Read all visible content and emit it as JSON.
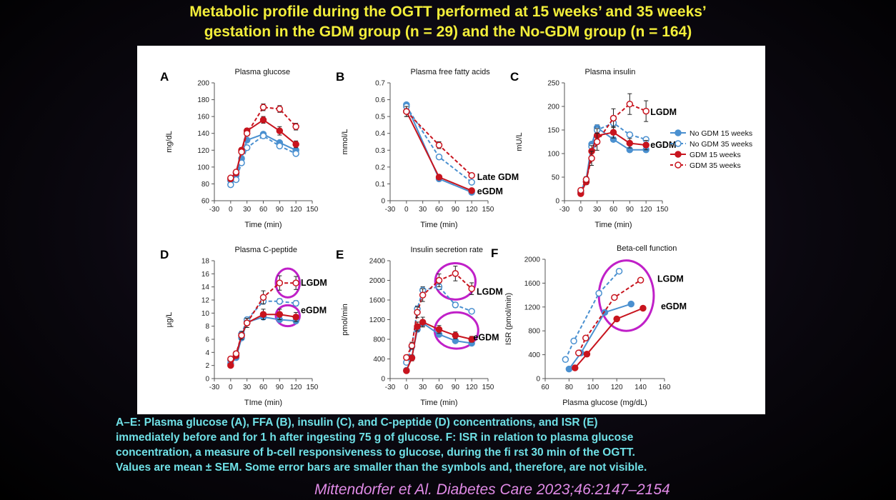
{
  "title": {
    "line1": "Metabolic profile during the OGTT performed at 15 weeks’ and 35 weeks’",
    "line2": "gestation in the GDM group (n = 29) and the No-GDM group (n = 164)"
  },
  "caption": {
    "line1": "A–E: Plasma glucose (A), FFA (B), insulin (C), and C-peptide (D) concentrations, and ISR (E)",
    "line2": "immediately before and for 1 h after ingesting 75 g of glucose. F: ISR in relation to plasma glucose",
    "line3": "concentration, a measure of b-cell responsiveness to glucose, during the fi rst 30 min of the OGTT.",
    "line4": "Values are mean ± SEM. Some error bars are smaller than the symbols and, therefore, are not visible."
  },
  "citation": "Mittendorfer et Al. Diabetes Care 2023;46:2147–2154",
  "colors": {
    "blue": "#4a90d0",
    "red": "#c8141e",
    "highlight": "#c020c8",
    "title": "#f3ee3a",
    "caption": "#6fe0e6",
    "citation": "#e08ae6"
  },
  "legend": [
    "No GDM 15 weeks",
    "No GDM 35 weeks",
    "GDM 15 weeks",
    "GDM 35 weeks"
  ],
  "chart_data": [
    {
      "panel": "A",
      "type": "line",
      "title": "Plasma glucose",
      "xlabel": "Time (min)",
      "ylabel": "mg/dL",
      "xlim": [
        -30,
        150
      ],
      "xticks": [
        -30,
        0,
        30,
        60,
        90,
        120,
        150
      ],
      "ylim": [
        60,
        200
      ],
      "yticks": [
        60,
        80,
        100,
        120,
        140,
        160,
        180,
        200
      ],
      "x": [
        0,
        10,
        20,
        30,
        60,
        90,
        120
      ],
      "series": [
        {
          "name": "No GDM 15 weeks",
          "values": [
            84,
            90,
            110,
            132,
            139,
            129,
            120
          ],
          "err": [
            1,
            1,
            1,
            1,
            1.5,
            1.5,
            1.5
          ]
        },
        {
          "name": "No GDM 35 weeks",
          "values": [
            79,
            85,
            105,
            123,
            137,
            125,
            116
          ],
          "err": [
            1,
            1,
            1,
            1,
            1.5,
            1.5,
            1.5
          ]
        },
        {
          "name": "GDM 15 weeks",
          "values": [
            86,
            93,
            120,
            143,
            156,
            143,
            127
          ],
          "err": [
            2,
            2,
            3,
            3,
            4,
            5,
            4
          ]
        },
        {
          "name": "GDM 35 weeks",
          "values": [
            87,
            94,
            118,
            140,
            171,
            169,
            148
          ],
          "err": [
            2,
            2,
            3,
            3,
            4,
            4,
            4
          ]
        }
      ],
      "annotations": []
    },
    {
      "panel": "B",
      "type": "line",
      "title": "Plasma free fatty acids",
      "xlabel": "Time (min)",
      "ylabel": "mmol/L",
      "xlim": [
        -30,
        150
      ],
      "xticks": [
        -30,
        0,
        30,
        60,
        90,
        120,
        150
      ],
      "ylim": [
        0,
        0.7
      ],
      "yticks": [
        0,
        0.1,
        0.2,
        0.3,
        0.4,
        0.5,
        0.6,
        0.7
      ],
      "x": [
        0,
        60,
        120
      ],
      "series": [
        {
          "name": "No GDM 15 weeks",
          "values": [
            0.57,
            0.13,
            0.05
          ],
          "err": [
            0.01,
            0.005,
            0.005
          ]
        },
        {
          "name": "No GDM 35 weeks",
          "values": [
            0.56,
            0.26,
            0.11
          ],
          "err": [
            0.01,
            0.01,
            0.005
          ]
        },
        {
          "name": "GDM 15 weeks",
          "values": [
            0.53,
            0.14,
            0.06
          ],
          "err": [
            0.03,
            0.01,
            0.01
          ]
        },
        {
          "name": "GDM 35 weeks",
          "values": [
            0.53,
            0.33,
            0.15
          ],
          "err": [
            0.03,
            0.02,
            0.01
          ]
        }
      ],
      "annotations": [
        {
          "text": "Late GDM",
          "x": 130,
          "y": 0.14
        },
        {
          "text": "eGDM",
          "x": 130,
          "y": 0.055
        }
      ]
    },
    {
      "panel": "C",
      "type": "line",
      "title": "Plasma insulin",
      "xlabel": "Time (min)",
      "ylabel": "mU/L",
      "xlim": [
        -30,
        150
      ],
      "xticks": [
        -30,
        0,
        30,
        60,
        90,
        120,
        150
      ],
      "ylim": [
        0,
        250
      ],
      "yticks": [
        0,
        50,
        100,
        150,
        200,
        250
      ],
      "x": [
        0,
        10,
        20,
        30,
        60,
        90,
        120
      ],
      "series": [
        {
          "name": "No GDM 15 weeks",
          "values": [
            20,
            45,
            120,
            155,
            130,
            108,
            108
          ],
          "err": [
            2,
            3,
            5,
            6,
            5,
            4,
            4
          ]
        },
        {
          "name": "No GDM 35 weeks",
          "values": [
            18,
            40,
            115,
            150,
            165,
            140,
            130
          ],
          "err": [
            2,
            3,
            5,
            6,
            6,
            5,
            5
          ]
        },
        {
          "name": "GDM 15 weeks",
          "values": [
            15,
            40,
            105,
            138,
            145,
            122,
            118
          ],
          "err": [
            3,
            6,
            12,
            15,
            12,
            10,
            10
          ]
        },
        {
          "name": "GDM 35 weeks",
          "values": [
            22,
            45,
            90,
            125,
            175,
            205,
            190
          ],
          "err": [
            4,
            6,
            15,
            18,
            20,
            22,
            22
          ]
        }
      ],
      "annotations": [
        {
          "text": "LGDM",
          "x": 128,
          "y": 188
        },
        {
          "text": "eGDM",
          "x": 128,
          "y": 118
        }
      ]
    },
    {
      "panel": "D",
      "type": "line",
      "title": "Plasma C-peptide",
      "xlabel": "TIme (min)",
      "ylabel": "µg/L",
      "xlim": [
        -30,
        150
      ],
      "xticks": [
        -30,
        0,
        30,
        60,
        90,
        120,
        150
      ],
      "ylim": [
        0,
        18
      ],
      "yticks": [
        0,
        2,
        4,
        6,
        8,
        10,
        12,
        14,
        16,
        18
      ],
      "x": [
        0,
        10,
        20,
        30,
        60,
        90,
        120
      ],
      "series": [
        {
          "name": "No GDM 15 weeks",
          "values": [
            2.3,
            3.2,
            6.2,
            8.6,
            9.4,
            9.0,
            8.8
          ],
          "err": [
            0.1,
            0.1,
            0.2,
            0.3,
            0.3,
            0.3,
            0.3
          ]
        },
        {
          "name": "No GDM 35 weeks",
          "values": [
            2.8,
            3.6,
            6.8,
            9.0,
            11.8,
            11.8,
            11.5
          ],
          "err": [
            0.1,
            0.1,
            0.2,
            0.3,
            0.4,
            0.4,
            0.4
          ]
        },
        {
          "name": "GDM 15 weeks",
          "values": [
            2.0,
            3.5,
            6.6,
            8.5,
            9.8,
            9.8,
            9.4
          ],
          "err": [
            0.3,
            0.4,
            0.6,
            0.7,
            0.8,
            0.8,
            0.7
          ]
        },
        {
          "name": "GDM 35 weeks",
          "values": [
            3.0,
            3.8,
            6.6,
            8.5,
            12.4,
            14.6,
            14.6
          ],
          "err": [
            0.3,
            0.4,
            0.6,
            0.7,
            1.0,
            1.1,
            1.0
          ]
        }
      ],
      "highlights": [
        {
          "label": "LGDM",
          "cx": 105,
          "cy": 14.6,
          "rx": 22,
          "ry": 2.2
        },
        {
          "label": "eGDM",
          "cx": 105,
          "cy": 9.6,
          "rx": 22,
          "ry": 1.6
        }
      ],
      "annotations": [
        {
          "text": "LGDM",
          "x": 129,
          "y": 14.6
        },
        {
          "text": "eGDM",
          "x": 129,
          "y": 10.4
        }
      ]
    },
    {
      "panel": "E",
      "type": "line",
      "title": "Insulin secretion rate",
      "xlabel": "Time (min)",
      "ylabel": "pmol/min",
      "xlim": [
        -30,
        150
      ],
      "xticks": [
        -30,
        0,
        30,
        60,
        90,
        120,
        150
      ],
      "ylim": [
        0,
        2400
      ],
      "yticks": [
        0,
        400,
        800,
        1200,
        1600,
        2000,
        2400
      ],
      "x": [
        0,
        10,
        20,
        30,
        60,
        90,
        120
      ],
      "series": [
        {
          "name": "No GDM 15 weeks",
          "values": [
            170,
            430,
            1000,
            1130,
            900,
            770,
            720
          ],
          "err": [
            20,
            30,
            50,
            60,
            40,
            35,
            35
          ]
        },
        {
          "name": "No GDM 35 weeks",
          "values": [
            330,
            650,
            1420,
            1800,
            1870,
            1500,
            1370
          ],
          "err": [
            25,
            40,
            60,
            70,
            60,
            50,
            45
          ]
        },
        {
          "name": "GDM 15 weeks",
          "values": [
            160,
            420,
            1060,
            1150,
            1000,
            880,
            800
          ],
          "err": [
            40,
            60,
            90,
            100,
            80,
            70,
            60
          ]
        },
        {
          "name": "GDM 35 weeks",
          "values": [
            430,
            670,
            1350,
            1700,
            2000,
            2140,
            1830
          ],
          "err": [
            50,
            70,
            110,
            130,
            130,
            150,
            120
          ]
        }
      ],
      "highlights": [
        {
          "label": "LGDM",
          "cx": 90,
          "cy": 1980,
          "rx": 37,
          "ry": 370
        },
        {
          "label": "eGDM",
          "cx": 92,
          "cy": 980,
          "rx": 40,
          "ry": 370
        }
      ],
      "annotations": [
        {
          "text": "LGDM",
          "x": 129,
          "y": 1770
        },
        {
          "text": "eGDM",
          "x": 123,
          "y": 840
        }
      ]
    },
    {
      "panel": "F",
      "type": "line",
      "title": "Beta-cell function",
      "xlabel": "Plasma glucose (mg/dL)",
      "ylabel": "ISR (pmol/min)",
      "xlim": [
        60,
        160
      ],
      "xticks": [
        60,
        80,
        100,
        120,
        140,
        160
      ],
      "ylim": [
        0,
        2000
      ],
      "yticks": [
        0,
        400,
        800,
        1200,
        1600,
        2000
      ],
      "series": [
        {
          "name": "No GDM 15 weeks",
          "points": [
            [
              80,
              160
            ],
            [
              90,
              430
            ],
            [
              110,
              1110
            ],
            [
              132,
              1250
            ]
          ]
        },
        {
          "name": "No GDM 35 weeks",
          "points": [
            [
              77,
              320
            ],
            [
              84,
              630
            ],
            [
              105,
              1430
            ],
            [
              122,
              1800
            ]
          ]
        },
        {
          "name": "GDM 15 weeks",
          "points": [
            [
              85,
              180
            ],
            [
              95,
              410
            ],
            [
              120,
              1000
            ],
            [
              142,
              1180
            ]
          ]
        },
        {
          "name": "GDM 35 weeks",
          "points": [
            [
              88,
              430
            ],
            [
              94,
              680
            ],
            [
              118,
              1360
            ],
            [
              140,
              1650
            ]
          ]
        }
      ],
      "highlights": [
        {
          "label": "LGDM",
          "cx": 128,
          "cy": 1390,
          "rx": 23,
          "ry": 590
        }
      ],
      "annotations": [
        {
          "text": "LGDM",
          "x": 154,
          "y": 1670
        },
        {
          "text": "eGDM",
          "x": 157,
          "y": 1210
        }
      ]
    }
  ]
}
